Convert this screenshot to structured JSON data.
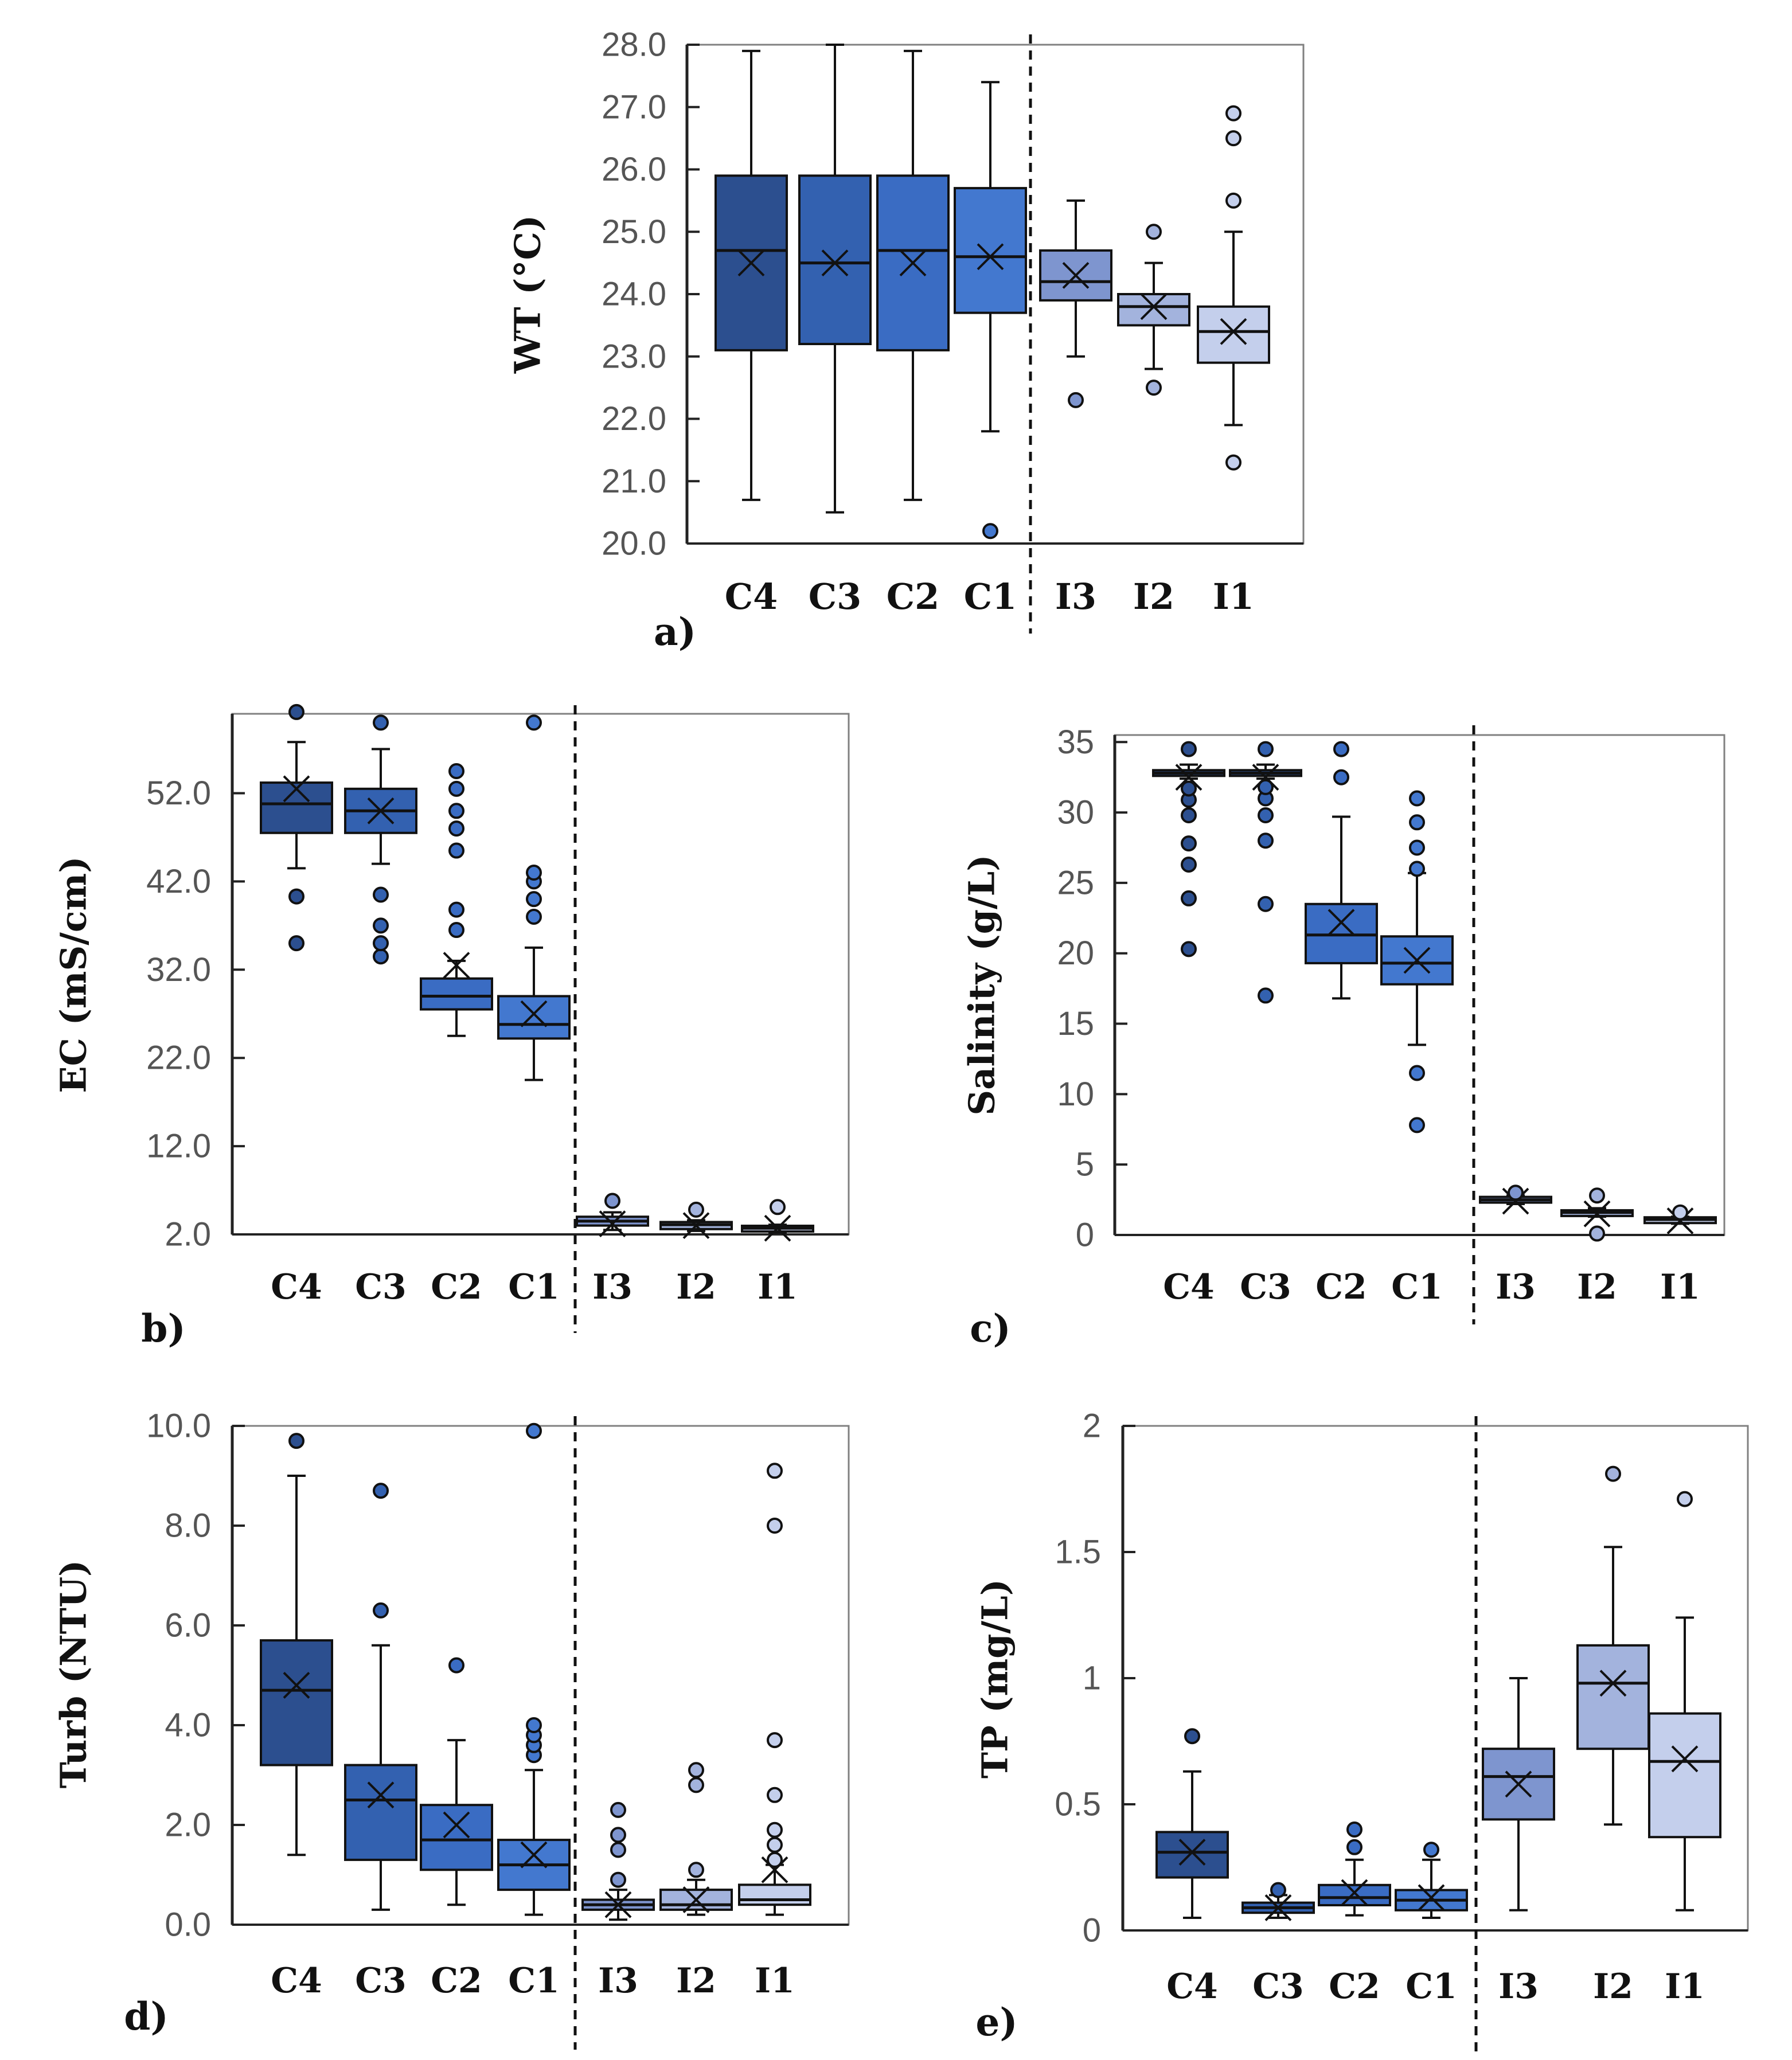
{
  "colors": {
    "C4": "#2c4f8f",
    "C3": "#3361b0",
    "C2": "#3a6cc3",
    "C1": "#4378cf",
    "I3": "#7e95cf",
    "I2": "#a3b3dd",
    "I1": "#c4cfec",
    "outline": "#111111"
  },
  "chart_data": [
    {
      "id": "a",
      "type": "boxplot",
      "panel_label": "a)",
      "ylabel": "WT (°C)",
      "ylim": [
        20.0,
        28.0
      ],
      "yticks": [
        20.0,
        21.0,
        22.0,
        23.0,
        24.0,
        25.0,
        26.0,
        27.0,
        28.0
      ],
      "tick_decimals": 1,
      "categories": [
        "C4",
        "C3",
        "C2",
        "C1",
        "I3",
        "I2",
        "I1"
      ],
      "series": [
        {
          "name": "C4",
          "whisker_low": 20.7,
          "q1": 23.1,
          "median": 24.7,
          "q3": 25.9,
          "whisker_high": 27.9,
          "mean": 24.5,
          "outliers": []
        },
        {
          "name": "C3",
          "whisker_low": 20.5,
          "q1": 23.2,
          "median": 24.5,
          "q3": 25.9,
          "whisker_high": 28.0,
          "mean": 24.5,
          "outliers": []
        },
        {
          "name": "C2",
          "whisker_low": 20.7,
          "q1": 23.1,
          "median": 24.7,
          "q3": 25.9,
          "whisker_high": 27.9,
          "mean": 24.5,
          "outliers": []
        },
        {
          "name": "C1",
          "whisker_low": 21.8,
          "q1": 23.7,
          "median": 24.6,
          "q3": 25.7,
          "whisker_high": 27.4,
          "mean": 24.6,
          "outliers": [
            20.2
          ]
        },
        {
          "name": "I3",
          "whisker_low": 23.0,
          "q1": 23.9,
          "median": 24.2,
          "q3": 24.7,
          "whisker_high": 25.5,
          "mean": 24.3,
          "outliers": [
            22.3
          ]
        },
        {
          "name": "I2",
          "whisker_low": 22.8,
          "q1": 23.5,
          "median": 23.8,
          "q3": 24.0,
          "whisker_high": 24.5,
          "mean": 23.8,
          "outliers": [
            22.5,
            25.0
          ]
        },
        {
          "name": "I1",
          "whisker_low": 21.9,
          "q1": 22.9,
          "median": 23.4,
          "q3": 23.8,
          "whisker_high": 25.0,
          "mean": 23.4,
          "outliers": [
            21.3,
            25.5,
            26.5,
            26.9
          ]
        }
      ]
    },
    {
      "id": "b",
      "type": "boxplot",
      "panel_label": "b)",
      "ylabel": "EC (mS/cm)",
      "ylim": [
        2.0,
        61.0
      ],
      "yticks": [
        2.0,
        12.0,
        22.0,
        32.0,
        42.0,
        52.0
      ],
      "tick_decimals": 1,
      "categories": [
        "C4",
        "C3",
        "C2",
        "C1",
        "I3",
        "I2",
        "I1"
      ],
      "series": [
        {
          "name": "C4",
          "whisker_low": 43.5,
          "q1": 47.5,
          "median": 50.8,
          "q3": 53.2,
          "whisker_high": 57.8,
          "mean": 52.5,
          "outliers": [
            35.0,
            40.3,
            61.2
          ]
        },
        {
          "name": "C3",
          "whisker_low": 44.0,
          "q1": 47.5,
          "median": 50.0,
          "q3": 52.5,
          "whisker_high": 57.0,
          "mean": 50.0,
          "outliers": [
            33.5,
            35.0,
            37.0,
            40.5,
            60.0
          ]
        },
        {
          "name": "C2",
          "whisker_low": 24.5,
          "q1": 27.5,
          "median": 29.0,
          "q3": 31.0,
          "whisker_high": 33.0,
          "mean": 32.5,
          "outliers": [
            36.5,
            38.8,
            45.5,
            48.0,
            50.0,
            52.5,
            54.5
          ]
        },
        {
          "name": "C1",
          "whisker_low": 19.5,
          "q1": 24.2,
          "median": 25.8,
          "q3": 29.0,
          "whisker_high": 34.5,
          "mean": 27.0,
          "outliers": [
            38.0,
            40.0,
            42.0,
            43.0,
            60.0
          ]
        },
        {
          "name": "I3",
          "whisker_low": 2.5,
          "q1": 3.0,
          "median": 3.5,
          "q3": 4.0,
          "whisker_high": 4.5,
          "mean": 3.2,
          "outliers": [
            5.8
          ]
        },
        {
          "name": "I2",
          "whisker_low": 2.4,
          "q1": 2.6,
          "median": 3.1,
          "q3": 3.4,
          "whisker_high": 3.6,
          "mean": 3.0,
          "outliers": [
            4.8
          ]
        },
        {
          "name": "I1",
          "whisker_low": 2.2,
          "q1": 2.4,
          "median": 2.7,
          "q3": 2.9,
          "whisker_high": 3.1,
          "mean": 2.7,
          "outliers": [
            5.1
          ]
        }
      ]
    },
    {
      "id": "c",
      "type": "boxplot",
      "panel_label": "c)",
      "ylabel": "Salinity (g/L)",
      "ylim": [
        0,
        35.5
      ],
      "yticks": [
        0,
        5,
        10,
        15,
        20,
        25,
        30,
        35
      ],
      "tick_decimals": 0,
      "categories": [
        "C4",
        "C3",
        "C2",
        "C1",
        "I3",
        "I2",
        "I1"
      ],
      "series": [
        {
          "name": "C4",
          "whisker_low": 32.4,
          "q1": 32.6,
          "median": 32.8,
          "q3": 33.0,
          "whisker_high": 33.4,
          "mean": 32.5,
          "outliers": [
            20.3,
            23.9,
            26.3,
            27.8,
            29.8,
            30.9,
            31.7,
            34.5
          ]
        },
        {
          "name": "C3",
          "whisker_low": 32.4,
          "q1": 32.6,
          "median": 32.8,
          "q3": 33.0,
          "whisker_high": 33.4,
          "mean": 32.5,
          "outliers": [
            17.0,
            23.5,
            28.0,
            29.8,
            31.0,
            31.8,
            34.5
          ]
        },
        {
          "name": "C2",
          "whisker_low": 16.8,
          "q1": 19.3,
          "median": 21.3,
          "q3": 23.5,
          "whisker_high": 29.7,
          "mean": 22.2,
          "outliers": [
            32.5,
            34.5
          ]
        },
        {
          "name": "C1",
          "whisker_low": 13.5,
          "q1": 17.8,
          "median": 19.3,
          "q3": 21.2,
          "whisker_high": 25.7,
          "mean": 19.5,
          "outliers": [
            7.8,
            11.5,
            26.0,
            27.5,
            29.3,
            31.0
          ]
        },
        {
          "name": "I3",
          "whisker_low": 2.2,
          "q1": 2.4,
          "median": 2.5,
          "q3": 2.6,
          "whisker_high": 2.8,
          "mean": 2.4,
          "outliers": [
            3.0
          ]
        },
        {
          "name": "I2",
          "whisker_low": 1.3,
          "q1": 1.4,
          "median": 1.6,
          "q3": 1.7,
          "whisker_high": 1.9,
          "mean": 1.5,
          "outliers": [
            0.1,
            2.8
          ]
        },
        {
          "name": "I1",
          "whisker_low": 0.8,
          "q1": 0.9,
          "median": 1.1,
          "q3": 1.2,
          "whisker_high": 1.3,
          "mean": 1.0,
          "outliers": [
            1.6
          ]
        }
      ]
    },
    {
      "id": "d",
      "type": "boxplot",
      "panel_label": "d)",
      "ylabel": "Turb (NTU)",
      "ylim": [
        0.0,
        10.0
      ],
      "yticks": [
        0.0,
        2.0,
        4.0,
        6.0,
        8.0,
        10.0
      ],
      "tick_decimals": 1,
      "categories": [
        "C4",
        "C3",
        "C2",
        "C1",
        "I3",
        "I2",
        "I1"
      ],
      "series": [
        {
          "name": "C4",
          "whisker_low": 1.4,
          "q1": 3.2,
          "median": 4.7,
          "q3": 5.7,
          "whisker_high": 9.0,
          "mean": 4.8,
          "outliers": [
            9.7
          ]
        },
        {
          "name": "C3",
          "whisker_low": 0.3,
          "q1": 1.3,
          "median": 2.5,
          "q3": 3.2,
          "whisker_high": 5.6,
          "mean": 2.6,
          "outliers": [
            6.3,
            8.7
          ]
        },
        {
          "name": "C2",
          "whisker_low": 0.4,
          "q1": 1.1,
          "median": 1.7,
          "q3": 2.4,
          "whisker_high": 3.7,
          "mean": 2.0,
          "outliers": [
            5.2
          ]
        },
        {
          "name": "C1",
          "whisker_low": 0.2,
          "q1": 0.7,
          "median": 1.2,
          "q3": 1.7,
          "whisker_high": 3.1,
          "mean": 1.4,
          "outliers": [
            3.4,
            3.6,
            3.8,
            4.0,
            9.9
          ]
        },
        {
          "name": "I3",
          "whisker_low": 0.1,
          "q1": 0.3,
          "median": 0.4,
          "q3": 0.5,
          "whisker_high": 0.7,
          "mean": 0.4,
          "outliers": [
            0.9,
            1.5,
            1.8,
            2.3
          ]
        },
        {
          "name": "I2",
          "whisker_low": 0.2,
          "q1": 0.3,
          "median": 0.4,
          "q3": 0.7,
          "whisker_high": 0.9,
          "mean": 0.5,
          "outliers": [
            1.1,
            2.8,
            3.1
          ]
        },
        {
          "name": "I1",
          "whisker_low": 0.2,
          "q1": 0.4,
          "median": 0.5,
          "q3": 0.8,
          "whisker_high": 1.2,
          "mean": 1.1,
          "outliers": [
            1.3,
            1.6,
            1.9,
            2.6,
            3.7,
            8.0,
            9.1
          ]
        }
      ]
    },
    {
      "id": "e",
      "type": "boxplot",
      "panel_label": "e)",
      "ylabel": "TP (mg/L)",
      "ylim": [
        0,
        2.0
      ],
      "yticks": [
        0,
        0.5,
        1,
        1.5,
        2
      ],
      "tick_decimals": -1,
      "categories": [
        "C4",
        "C3",
        "C2",
        "C1",
        "I3",
        "I2",
        "I1"
      ],
      "series": [
        {
          "name": "C4",
          "whisker_low": 0.05,
          "q1": 0.21,
          "median": 0.31,
          "q3": 0.39,
          "whisker_high": 0.63,
          "mean": 0.31,
          "outliers": [
            0.77
          ]
        },
        {
          "name": "C3",
          "whisker_low": 0.05,
          "q1": 0.07,
          "median": 0.09,
          "q3": 0.11,
          "whisker_high": 0.14,
          "mean": 0.09,
          "outliers": [
            0.16
          ]
        },
        {
          "name": "C2",
          "whisker_low": 0.06,
          "q1": 0.1,
          "median": 0.13,
          "q3": 0.18,
          "whisker_high": 0.28,
          "mean": 0.15,
          "outliers": [
            0.33,
            0.4
          ]
        },
        {
          "name": "C1",
          "whisker_low": 0.05,
          "q1": 0.08,
          "median": 0.12,
          "q3": 0.16,
          "whisker_high": 0.28,
          "mean": 0.13,
          "outliers": [
            0.32
          ]
        },
        {
          "name": "I3",
          "whisker_low": 0.08,
          "q1": 0.44,
          "median": 0.61,
          "q3": 0.72,
          "whisker_high": 1.0,
          "mean": 0.58,
          "outliers": []
        },
        {
          "name": "I2",
          "whisker_low": 0.42,
          "q1": 0.72,
          "median": 0.98,
          "q3": 1.13,
          "whisker_high": 1.52,
          "mean": 0.98,
          "outliers": [
            1.81
          ]
        },
        {
          "name": "I1",
          "whisker_low": 0.08,
          "q1": 0.37,
          "median": 0.67,
          "q3": 0.86,
          "whisker_high": 1.24,
          "mean": 0.68,
          "outliers": [
            1.71
          ]
        }
      ]
    }
  ]
}
